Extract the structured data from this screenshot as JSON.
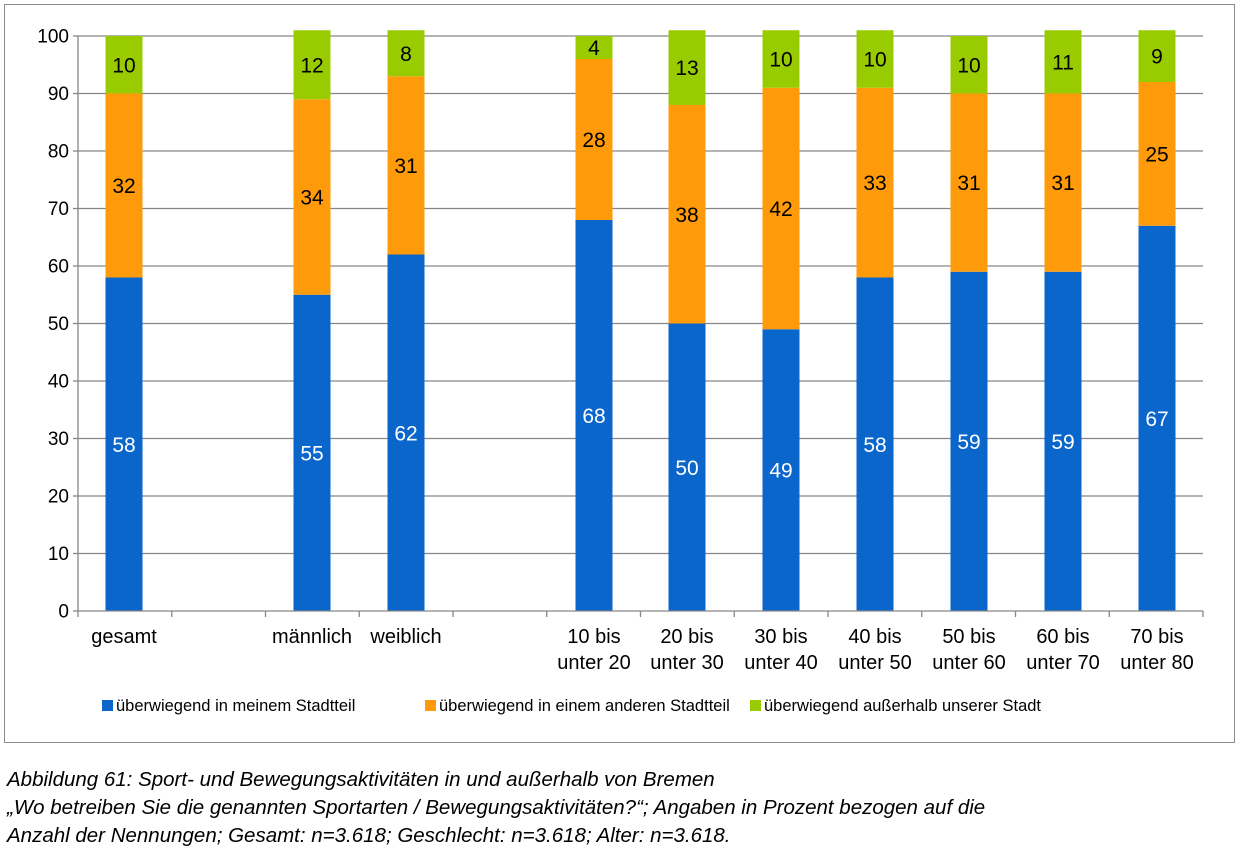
{
  "chart_data": {
    "type": "bar",
    "stacked": true,
    "categories": [
      {
        "label": [
          "gesamt"
        ]
      },
      {
        "label": [
          "männlich"
        ]
      },
      {
        "label": [
          "weiblich"
        ]
      },
      {
        "label": [
          "10 bis",
          "unter 20"
        ]
      },
      {
        "label": [
          "20 bis",
          "unter 30"
        ]
      },
      {
        "label": [
          "30 bis",
          "unter 40"
        ]
      },
      {
        "label": [
          "40 bis",
          "unter 50"
        ]
      },
      {
        "label": [
          "50 bis",
          "unter 60"
        ]
      },
      {
        "label": [
          "60 bis",
          "unter 70"
        ]
      },
      {
        "label": [
          "70 bis",
          "unter 80"
        ]
      }
    ],
    "series": [
      {
        "name": "überwiegend in meinem Stadtteil",
        "color": "#0b66cc",
        "label_color": "#ffffff",
        "values": [
          58,
          55,
          62,
          68,
          50,
          49,
          58,
          59,
          59,
          67
        ]
      },
      {
        "name": "überwiegend in einem anderen Stadtteil",
        "color": "#ff9a0a",
        "label_color": "#000000",
        "values": [
          32,
          34,
          31,
          28,
          38,
          42,
          33,
          31,
          31,
          25
        ]
      },
      {
        "name": "überwiegend außerhalb unserer Stadt",
        "color": "#99cc00",
        "label_color": "#000000",
        "values": [
          10,
          12,
          8,
          4,
          13,
          10,
          10,
          10,
          11,
          9
        ]
      }
    ],
    "ylim": [
      0,
      100
    ],
    "yticks": [
      0,
      10,
      20,
      30,
      40,
      50,
      60,
      70,
      80,
      90,
      100
    ],
    "grid": true,
    "legend_position": "bottom",
    "xlabel": "",
    "ylabel": "",
    "colors": {
      "grid": "#868686",
      "axis": "#868686",
      "text": "#000000"
    }
  },
  "caption": {
    "line1": "Abbildung 61: Sport- und Bewegungsaktivitäten in und außerhalb von Bremen",
    "line2": "„Wo betreiben Sie die genannten Sportarten / Bewegungsaktivitäten?“; Angaben in Prozent bezogen auf die",
    "line3": "Anzahl der Nennungen; Gesamt: n=3.618; Geschlecht: n=3.618; Alter: n=3.618."
  }
}
